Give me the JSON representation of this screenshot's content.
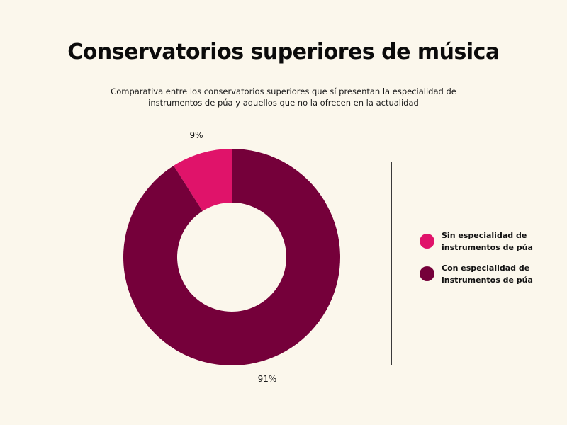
{
  "title": "Conservatorios superiores de música",
  "subtitle": {
    "line1": "Comparativa entre los conservatorios superiores que sí presentan la especialidad de",
    "line2": "instrumentos de púa y aquellos que no la ofrecen en la actualidad"
  },
  "legend": {
    "items": [
      {
        "line1": "Sin especialidad de",
        "line2": "instrumentos de púa",
        "color": "#e0136a"
      },
      {
        "line1": "Con especialidad de",
        "line2": "instrumentos de púa",
        "color": "#75003a"
      }
    ],
    "position": "right"
  },
  "chart_data": {
    "type": "pie",
    "subtype": "donut",
    "title": "Conservatorios superiores de música",
    "subtitle": "Comparativa entre los conservatorios superiores que sí presentan la especialidad de instrumentos de púa y aquellos que no la ofrecen en la actualidad",
    "categories": [
      "Sin especialidad de instrumentos de púa",
      "Con especialidad de instrumentos de púa"
    ],
    "values": [
      9,
      91
    ],
    "labels": [
      "9%",
      "91%"
    ],
    "colors": [
      "#e0136a",
      "#75003a"
    ],
    "unit": "%",
    "legend": "right"
  }
}
